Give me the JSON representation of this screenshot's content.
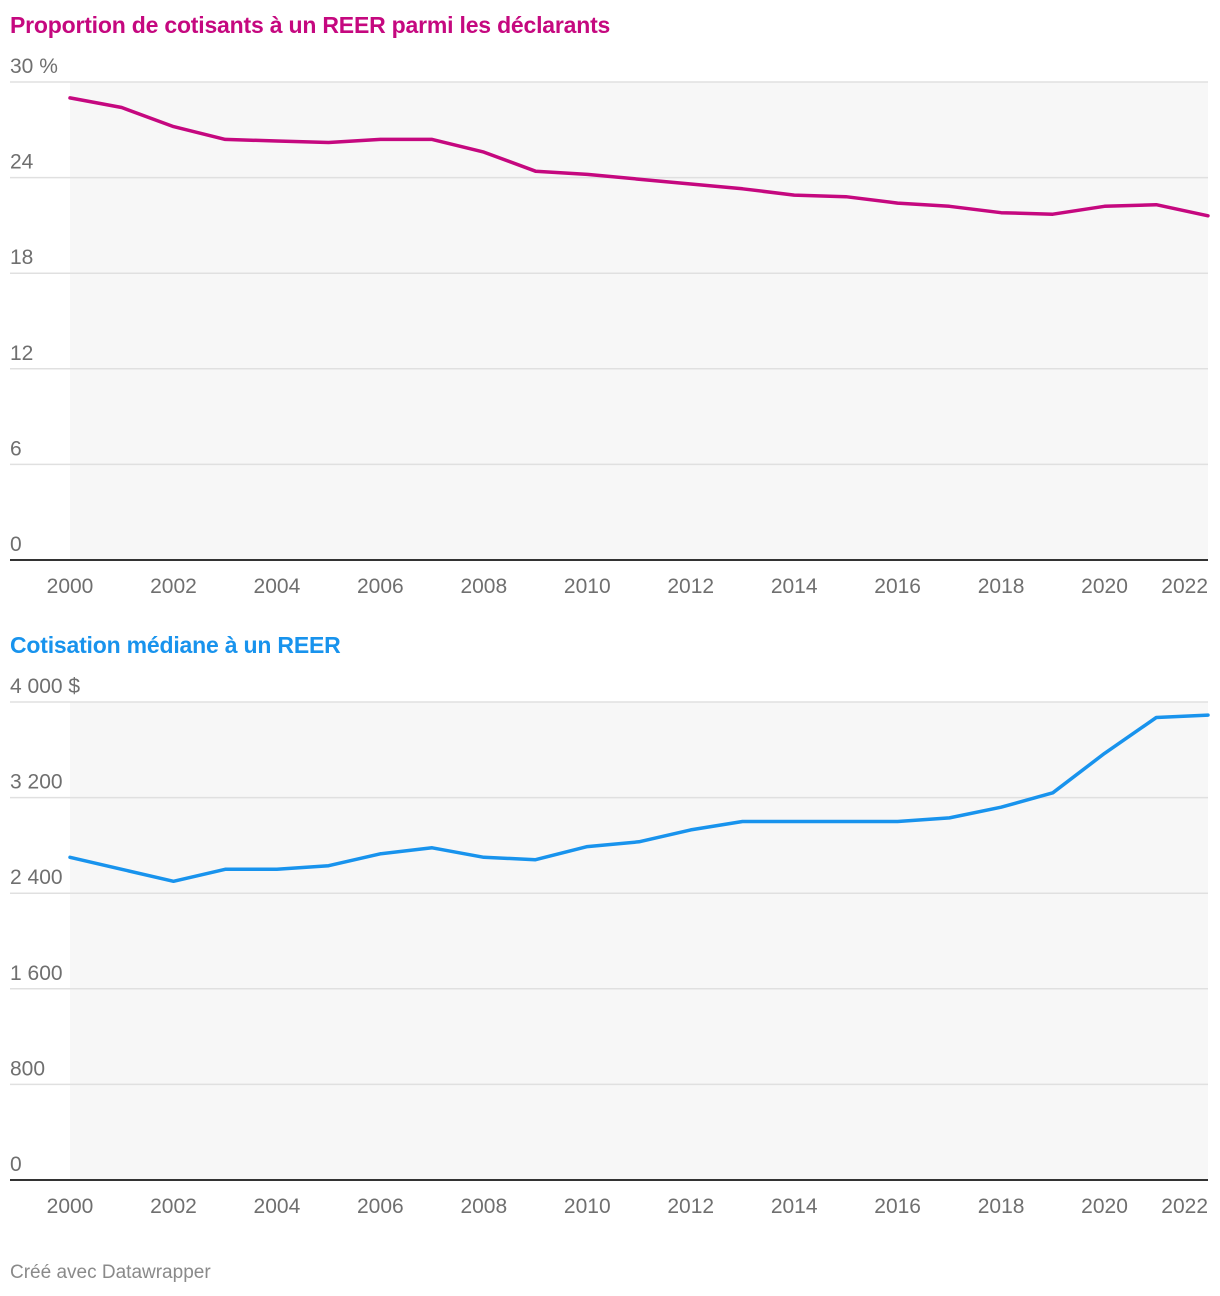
{
  "colors": {
    "series1": "#c5087f",
    "series2": "#1893ed",
    "grid": "#e0e0e0",
    "area": "#f7f7f7",
    "axis": "#333333",
    "tick": "#6f6f6f",
    "footer": "#8a8a8a"
  },
  "footer": {
    "credit": "Créé avec Datawrapper"
  },
  "chart_data": [
    {
      "type": "line",
      "title": "Proportion de cotisants à un REER parmi les déclarants",
      "xlabel": "",
      "ylabel": "",
      "x": [
        2000,
        2001,
        2002,
        2003,
        2004,
        2005,
        2006,
        2007,
        2008,
        2009,
        2010,
        2011,
        2012,
        2013,
        2014,
        2015,
        2016,
        2017,
        2018,
        2019,
        2020,
        2021,
        2022
      ],
      "series": [
        {
          "name": "Proportion de cotisants",
          "values": [
            29.0,
            28.4,
            27.2,
            26.4,
            26.3,
            26.2,
            26.4,
            26.4,
            25.6,
            24.4,
            24.2,
            23.9,
            23.6,
            23.3,
            22.9,
            22.8,
            22.4,
            22.2,
            21.8,
            21.7,
            22.2,
            22.3,
            21.6
          ]
        }
      ],
      "ylim": [
        0,
        30
      ],
      "yticks": [
        0,
        6,
        12,
        18,
        24,
        30
      ],
      "ytick_labels": [
        "0",
        "6",
        "12",
        "18",
        "24",
        "30 %"
      ],
      "xticks": [
        2000,
        2002,
        2004,
        2006,
        2008,
        2010,
        2012,
        2014,
        2016,
        2018,
        2020,
        2022
      ],
      "xtick_labels": [
        "2000",
        "2002",
        "2004",
        "2006",
        "2008",
        "2010",
        "2012",
        "2014",
        "2016",
        "2018",
        "2020",
        "2022"
      ]
    },
    {
      "type": "line",
      "title": "Cotisation médiane à un REER",
      "xlabel": "",
      "ylabel": "",
      "x": [
        2000,
        2001,
        2002,
        2003,
        2004,
        2005,
        2006,
        2007,
        2008,
        2009,
        2010,
        2011,
        2012,
        2013,
        2014,
        2015,
        2016,
        2017,
        2018,
        2019,
        2020,
        2021,
        2022
      ],
      "series": [
        {
          "name": "Cotisation médiane",
          "values": [
            2700,
            2600,
            2500,
            2600,
            2600,
            2630,
            2730,
            2780,
            2700,
            2680,
            2790,
            2830,
            2930,
            3000,
            3000,
            3000,
            3000,
            3030,
            3120,
            3240,
            3570,
            3870,
            3890
          ]
        }
      ],
      "ylim": [
        0,
        4000
      ],
      "yticks": [
        0,
        800,
        1600,
        2400,
        3200,
        4000
      ],
      "ytick_labels": [
        "0",
        "800",
        "1 600",
        "2 400",
        "3 200",
        "4 000 $"
      ],
      "xticks": [
        2000,
        2002,
        2004,
        2006,
        2008,
        2010,
        2012,
        2014,
        2016,
        2018,
        2020,
        2022
      ],
      "xtick_labels": [
        "2000",
        "2002",
        "2004",
        "2006",
        "2008",
        "2010",
        "2012",
        "2014",
        "2016",
        "2018",
        "2020",
        "2022"
      ]
    }
  ]
}
